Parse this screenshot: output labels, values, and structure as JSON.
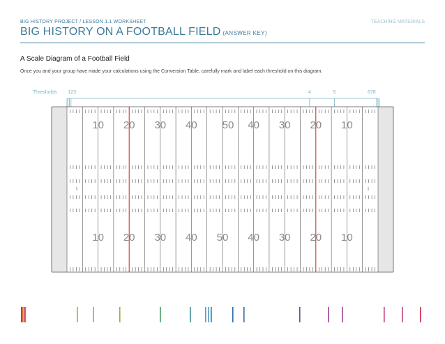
{
  "header": {
    "kicker": "BIG HISTORY PROJECT / LESSON 1.1 WORKSHEET",
    "tag": "TEACHING MATERIALS",
    "title": "BIG HISTORY ON A FOOTBALL FIELD",
    "subtitle": "(ANSWER KEY)"
  },
  "section": {
    "heading": "A Scale Diagram of a Football Field",
    "instructions": "Once you and your group have made your calculations using the Conversion Table, carefully mark and label each threshold on this diagram."
  },
  "thresholds": {
    "label": "Thresholds",
    "groups": [
      {
        "text": "123",
        "yards": [
          0.3,
          0.8,
          1.3
        ]
      },
      {
        "text": "4",
        "yards": [
          78
        ]
      },
      {
        "text": "5",
        "yards": [
          86
        ]
      },
      {
        "text": "678",
        "yards": [
          99.97,
          99.98,
          99.99
        ]
      }
    ]
  },
  "field": {
    "yard_numbers": [
      "10",
      "20",
      "30",
      "40",
      "50",
      "40",
      "30",
      "20",
      "10"
    ],
    "highlight_yards": [
      20,
      80
    ],
    "colors": {
      "lines": "#555555",
      "highlight": "#cc1f2a",
      "endzone": "#e6e6e6",
      "numbers": "#8a8a8a",
      "threshold": "#7ab5c6"
    }
  },
  "legend_palette": [
    "#b32024",
    "#e36a24",
    "#c88b2c",
    "#8bb33d",
    "#3b9b5c",
    "#2f8a8e",
    "#4fa3c5",
    "#2d6aa5",
    "#6a4a9c",
    "#9b3f93",
    "#c03b85",
    "#d32a4b"
  ]
}
